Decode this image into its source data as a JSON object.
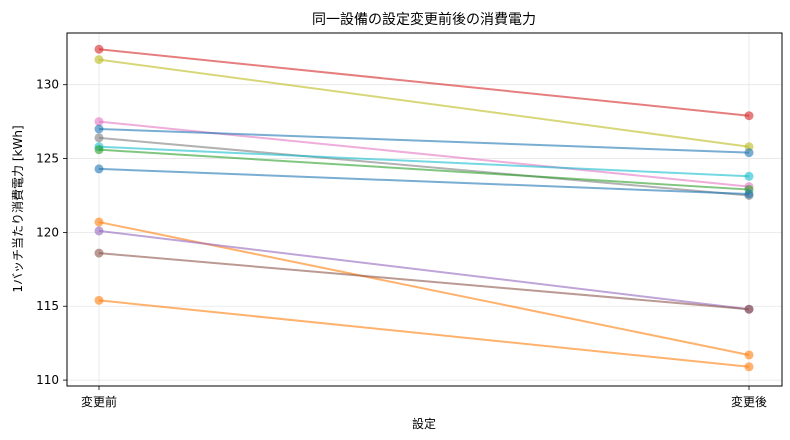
{
  "chart_data": {
    "type": "line",
    "title": "同一設備の設定変更前後の消費電力",
    "xlabel": "設定",
    "ylabel": "1バッチ当たり消費電力 [kWh]",
    "categories": [
      "変更前",
      "変更後"
    ],
    "ylim": [
      109.6,
      133.5
    ],
    "yticks": [
      110,
      115,
      120,
      125,
      130
    ],
    "grid": true,
    "series": [
      {
        "values": [
          132.4,
          127.9
        ],
        "color": "#d62728"
      },
      {
        "values": [
          131.7,
          125.8
        ],
        "color": "#bcbd22"
      },
      {
        "values": [
          127.5,
          123.1
        ],
        "color": "#e377c2"
      },
      {
        "values": [
          127.0,
          125.4
        ],
        "color": "#1f77b4"
      },
      {
        "values": [
          126.4,
          122.5
        ],
        "color": "#7f7f7f"
      },
      {
        "values": [
          125.8,
          123.8
        ],
        "color": "#17becf"
      },
      {
        "values": [
          125.6,
          122.9
        ],
        "color": "#2ca02c"
      },
      {
        "values": [
          124.3,
          122.6
        ],
        "color": "#1f77b4"
      },
      {
        "values": [
          120.7,
          111.7
        ],
        "color": "#ff7f0e"
      },
      {
        "values": [
          120.1,
          114.8
        ],
        "color": "#9467bd"
      },
      {
        "values": [
          118.6,
          114.8
        ],
        "color": "#8c564b"
      },
      {
        "values": [
          115.4,
          110.9
        ],
        "color": "#ff7f0e"
      }
    ]
  }
}
